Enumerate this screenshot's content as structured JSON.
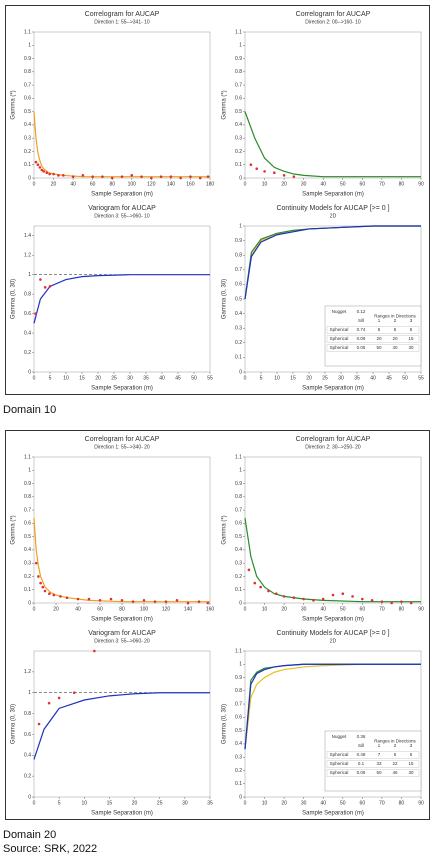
{
  "captions": [
    "Domain 10",
    "Domain 20"
  ],
  "source": "Source: SRK, 2022",
  "chart_data": [
    {
      "type": "line",
      "title": "Correlogram for AUCAP",
      "subtitle": "Direction 1: 55-->341- 10",
      "x_label": "Sample Separation (m)",
      "y_label": "Gamma (*)",
      "xlim": [
        0,
        180
      ],
      "xticks": [
        0,
        20,
        40,
        60,
        80,
        100,
        120,
        140,
        160,
        180
      ],
      "ylim": [
        0,
        1.1
      ],
      "yticks": [
        0,
        0.1,
        0.2,
        0.3,
        0.4,
        0.5,
        0.6,
        0.7,
        0.8,
        0.9,
        1.0,
        1.1
      ],
      "series": [
        {
          "kind": "line",
          "color": "#f0a020",
          "x": [
            0,
            2,
            4,
            6,
            8,
            10,
            15,
            20,
            30,
            50,
            100,
            180
          ],
          "values": [
            0.5,
            0.3,
            0.19,
            0.13,
            0.09,
            0.07,
            0.04,
            0.03,
            0.02,
            0.01,
            0.01,
            0.01
          ]
        },
        {
          "kind": "points",
          "color": "#e03030",
          "x": [
            2,
            4,
            6,
            8,
            10,
            13,
            16,
            20,
            25,
            30,
            40,
            50,
            60,
            70,
            80,
            90,
            100,
            110,
            120,
            130,
            140,
            150,
            160,
            170,
            178
          ],
          "values": [
            0.12,
            0.1,
            0.08,
            0.06,
            0.05,
            0.04,
            0.03,
            0.03,
            0.02,
            0.02,
            0.01,
            0.02,
            0.01,
            0.01,
            0.0,
            0.01,
            0.02,
            0.01,
            0.0,
            0.01,
            0.01,
            0.0,
            0.01,
            0.0,
            0.01
          ]
        }
      ]
    },
    {
      "type": "line",
      "title": "Correlogram for AUCAP",
      "subtitle": "Direction 2: 00-->160- 10",
      "x_label": "Sample Separation (m)",
      "y_label": "Gamma (*)",
      "xlim": [
        0,
        90
      ],
      "xticks": [
        0,
        10,
        20,
        30,
        40,
        50,
        60,
        70,
        80,
        90
      ],
      "ylim": [
        0,
        1.1
      ],
      "yticks": [
        0,
        0.1,
        0.2,
        0.3,
        0.4,
        0.5,
        0.6,
        0.7,
        0.8,
        0.9,
        1.0,
        1.1
      ],
      "series": [
        {
          "kind": "line",
          "color": "#2a8a2a",
          "x": [
            0,
            5,
            10,
            15,
            20,
            25,
            30,
            40,
            60,
            90
          ],
          "values": [
            0.5,
            0.3,
            0.15,
            0.08,
            0.05,
            0.03,
            0.02,
            0.01,
            0.01,
            0.01
          ]
        },
        {
          "kind": "points",
          "color": "#e03030",
          "x": [
            3,
            6,
            10,
            15,
            20,
            25
          ],
          "values": [
            0.1,
            0.07,
            0.05,
            0.04,
            0.02,
            0.01
          ]
        }
      ]
    },
    {
      "type": "line",
      "title": "Variogram for AUCAP",
      "subtitle": "Direction 3: 55-->060- 10",
      "x_label": "Sample Separation (m)",
      "y_label": "Gamma (0, 30)",
      "xlim": [
        0,
        55
      ],
      "xticks": [
        0,
        5,
        10,
        15,
        20,
        25,
        30,
        35,
        40,
        45,
        50,
        55
      ],
      "ylim": [
        0,
        1.5
      ],
      "yticks": [
        0,
        0.2,
        0.4,
        0.6,
        0.8,
        1.0,
        1.2,
        1.4
      ],
      "sill": 1,
      "series": [
        {
          "kind": "line",
          "color": "#2030c0",
          "x": [
            0,
            2,
            5,
            10,
            15,
            20,
            30,
            40,
            55
          ],
          "values": [
            0.5,
            0.75,
            0.88,
            0.95,
            0.98,
            0.99,
            1,
            1,
            1
          ]
        },
        {
          "kind": "points",
          "color": "#e03030",
          "x": [
            0.5,
            2,
            3.5,
            5
          ],
          "values": [
            0.6,
            0.95,
            0.87,
            0.88
          ]
        }
      ]
    },
    {
      "type": "line",
      "title": "Continuity Models for AUCAP [>= 0 ]",
      "subtitle": "2D",
      "x_label": "Sample Separation (m)",
      "y_label": "Gamma (0, 30)",
      "xlim": [
        0,
        55
      ],
      "xticks": [
        0,
        5,
        10,
        15,
        20,
        25,
        30,
        35,
        40,
        45,
        50,
        55
      ],
      "ylim": [
        0,
        1.0
      ],
      "yticks": [
        0,
        0.1,
        0.2,
        0.3,
        0.4,
        0.5,
        0.6,
        0.7,
        0.8,
        0.9,
        1.0
      ],
      "series": [
        {
          "kind": "line",
          "color": "#e8c020",
          "x": [
            0,
            2,
            5,
            10,
            15,
            20,
            30,
            40,
            55
          ],
          "values": [
            0.5,
            0.8,
            0.9,
            0.94,
            0.96,
            0.98,
            0.99,
            1,
            1
          ]
        },
        {
          "kind": "line",
          "color": "#2a8a2a",
          "x": [
            0,
            2,
            5,
            10,
            15,
            20,
            30,
            40,
            55
          ],
          "values": [
            0.5,
            0.82,
            0.91,
            0.95,
            0.97,
            0.98,
            0.99,
            1,
            1
          ]
        },
        {
          "kind": "line",
          "color": "#2030c0",
          "x": [
            0,
            2,
            5,
            10,
            15,
            20,
            30,
            40,
            55
          ],
          "values": [
            0.5,
            0.79,
            0.89,
            0.94,
            0.96,
            0.98,
            0.99,
            1,
            1
          ]
        }
      ],
      "table": {
        "nugget_label": "Nugget",
        "nugget": 0.12,
        "sill_label": "Sill",
        "header": "Ranges in Directions",
        "directions": [
          "1",
          "2",
          "3"
        ],
        "rows": [
          {
            "structure": "Spherical",
            "sill": 0.74,
            "ranges": [
              5,
              5,
              5
            ]
          },
          {
            "structure": "Spherical",
            "sill": 0.09,
            "ranges": [
              20,
              20,
              15
            ]
          },
          {
            "structure": "Spherical",
            "sill": 0.05,
            "ranges": [
              50,
              40,
              30
            ]
          }
        ]
      }
    },
    {
      "type": "line",
      "title": "Correlogram for AUCAP",
      "subtitle": "Direction 1: 55-->340- 20",
      "x_label": "Sample Separation (m)",
      "y_label": "Gamma (*)",
      "xlim": [
        0,
        160
      ],
      "xticks": [
        0,
        20,
        40,
        60,
        80,
        100,
        120,
        140,
        160
      ],
      "ylim": [
        0,
        1.1
      ],
      "yticks": [
        0,
        0.1,
        0.2,
        0.3,
        0.4,
        0.5,
        0.6,
        0.7,
        0.8,
        0.9,
        1.0,
        1.1
      ],
      "series": [
        {
          "kind": "line",
          "color": "#f0a020",
          "x": [
            0,
            2,
            4,
            6,
            10,
            15,
            20,
            30,
            50,
            80,
            160
          ],
          "values": [
            0.64,
            0.4,
            0.28,
            0.2,
            0.12,
            0.08,
            0.06,
            0.04,
            0.02,
            0.01,
            0.01
          ]
        },
        {
          "kind": "points",
          "color": "#e03030",
          "x": [
            2,
            4,
            6,
            8,
            10,
            14,
            18,
            24,
            30,
            40,
            50,
            60,
            70,
            80,
            90,
            100,
            110,
            120,
            130,
            140,
            150,
            158
          ],
          "values": [
            0.3,
            0.2,
            0.15,
            0.12,
            0.09,
            0.07,
            0.06,
            0.05,
            0.04,
            0.03,
            0.03,
            0.02,
            0.03,
            0.02,
            0.01,
            0.02,
            0.01,
            0.01,
            0.02,
            0.0,
            0.01,
            0.0
          ]
        }
      ]
    },
    {
      "type": "line",
      "title": "Correlogram for AUCAP",
      "subtitle": "Direction 2: 30-->250- 20",
      "x_label": "Sample Separation (m)",
      "y_label": "Gamma (*)",
      "xlim": [
        0,
        90
      ],
      "xticks": [
        0,
        10,
        20,
        30,
        40,
        50,
        60,
        70,
        80,
        90
      ],
      "ylim": [
        0,
        1.1
      ],
      "yticks": [
        0,
        0.1,
        0.2,
        0.3,
        0.4,
        0.5,
        0.6,
        0.7,
        0.8,
        0.9,
        1.0,
        1.1
      ],
      "series": [
        {
          "kind": "line",
          "color": "#2a8a2a",
          "x": [
            0,
            3,
            6,
            10,
            15,
            20,
            30,
            40,
            60,
            90
          ],
          "values": [
            0.64,
            0.35,
            0.2,
            0.12,
            0.07,
            0.05,
            0.03,
            0.02,
            0.01,
            0.01
          ]
        },
        {
          "kind": "points",
          "color": "#e03030",
          "x": [
            2,
            5,
            8,
            12,
            16,
            20,
            25,
            30,
            35,
            40,
            45,
            50,
            55,
            60,
            65,
            70,
            75,
            80,
            85
          ],
          "values": [
            0.25,
            0.15,
            0.12,
            0.09,
            0.07,
            0.05,
            0.04,
            0.03,
            0.02,
            0.03,
            0.06,
            0.07,
            0.05,
            0.03,
            0.02,
            0.01,
            0.0,
            0.01,
            0.0
          ]
        }
      ]
    },
    {
      "type": "line",
      "title": "Variogram for AUCAP",
      "subtitle": "Direction 3: 55-->060- 20",
      "x_label": "Sample Separation (m)",
      "y_label": "Gamma (0, 30)",
      "xlim": [
        0,
        35
      ],
      "xticks": [
        0,
        5,
        10,
        15,
        20,
        25,
        30,
        35
      ],
      "ylim": [
        0,
        1.4
      ],
      "yticks": [
        0,
        0.2,
        0.4,
        0.6,
        0.8,
        1.0,
        1.2
      ],
      "sill": 1,
      "series": [
        {
          "kind": "line",
          "color": "#2030c0",
          "x": [
            0,
            2,
            5,
            10,
            15,
            20,
            25,
            30,
            35
          ],
          "values": [
            0.36,
            0.65,
            0.85,
            0.93,
            0.97,
            0.99,
            1,
            1,
            1
          ]
        },
        {
          "kind": "points",
          "color": "#e03030",
          "x": [
            1,
            3,
            5,
            8,
            12
          ],
          "values": [
            0.7,
            0.9,
            0.95,
            1.0,
            1.4
          ]
        }
      ]
    },
    {
      "type": "line",
      "title": "Continuity Models for AUCAP [>= 0 ]",
      "subtitle": "2D",
      "x_label": "Sample Separation (m)",
      "y_label": "Gamma (0, 30)",
      "xlim": [
        0,
        90
      ],
      "xticks": [
        0,
        10,
        20,
        30,
        40,
        50,
        60,
        70,
        80,
        90
      ],
      "ylim": [
        0,
        1.1
      ],
      "yticks": [
        0,
        0.1,
        0.2,
        0.3,
        0.4,
        0.5,
        0.6,
        0.7,
        0.8,
        0.9,
        1.0,
        1.1
      ],
      "series": [
        {
          "kind": "line",
          "color": "#e8c020",
          "x": [
            0,
            3,
            6,
            10,
            15,
            20,
            30,
            40,
            60,
            90
          ],
          "values": [
            0.36,
            0.75,
            0.85,
            0.9,
            0.94,
            0.96,
            0.98,
            0.99,
            1,
            1
          ]
        },
        {
          "kind": "line",
          "color": "#2a8a2a",
          "x": [
            0,
            3,
            6,
            10,
            15,
            20,
            30,
            40,
            60,
            90
          ],
          "values": [
            0.36,
            0.88,
            0.94,
            0.97,
            0.98,
            0.99,
            1,
            1,
            1,
            1
          ]
        },
        {
          "kind": "line",
          "color": "#2030c0",
          "x": [
            0,
            3,
            6,
            10,
            15,
            20,
            30,
            40,
            60,
            90
          ],
          "values": [
            0.36,
            0.85,
            0.93,
            0.96,
            0.98,
            0.99,
            1,
            1,
            1,
            1
          ]
        }
      ],
      "table": {
        "nugget_label": "Nugget",
        "nugget": 0.36,
        "sill_label": "Sill",
        "header": "Ranges in Directions",
        "directions": [
          "1",
          "2",
          "3"
        ],
        "rows": [
          {
            "structure": "Spherical",
            "sill": 0.49,
            "ranges": [
              7,
              5,
              5
            ]
          },
          {
            "structure": "Spherical",
            "sill": 0.1,
            "ranges": [
              33,
              22,
              15
            ]
          },
          {
            "structure": "Spherical",
            "sill": 0.05,
            "ranges": [
              50,
              46,
              30
            ]
          }
        ]
      }
    }
  ]
}
